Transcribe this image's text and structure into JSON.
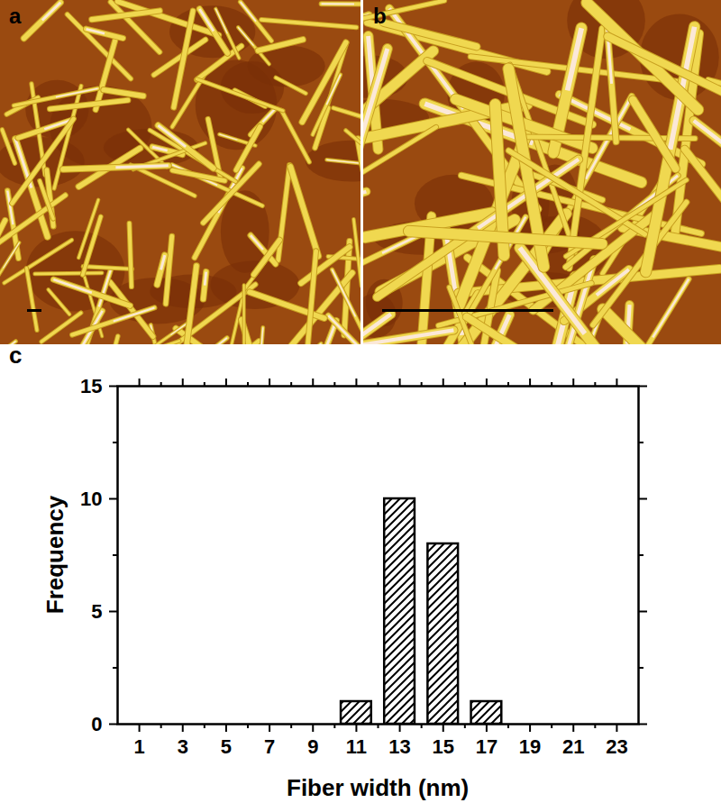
{
  "images": [
    {
      "label": "a"
    },
    {
      "label": "b"
    }
  ],
  "chart_data": {
    "type": "bar",
    "title": "c",
    "x": [
      11,
      13,
      15,
      17
    ],
    "values": [
      1,
      10,
      8,
      1
    ],
    "color": "#000000",
    "xlabel": "Fiber width (nm)",
    "ylabel": "Frequency",
    "xlim": [
      0,
      24
    ],
    "xticks": [
      1,
      3,
      5,
      7,
      9,
      11,
      13,
      15,
      17,
      19,
      21,
      23
    ],
    "ylim": [
      0,
      15
    ],
    "yticks": [
      0,
      5,
      10,
      15
    ]
  }
}
